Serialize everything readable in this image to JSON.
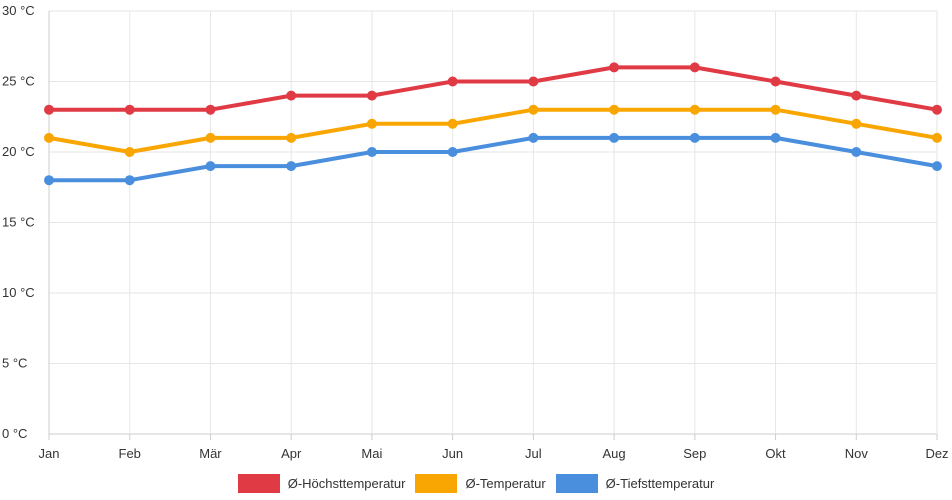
{
  "chart_data": {
    "type": "line",
    "categories": [
      "Jan",
      "Feb",
      "Mär",
      "Apr",
      "Mai",
      "Jun",
      "Jul",
      "Aug",
      "Sep",
      "Okt",
      "Nov",
      "Dez"
    ],
    "ylim": [
      0,
      30
    ],
    "yticks": [
      0,
      5,
      10,
      15,
      20,
      25,
      30
    ],
    "yunit": " °C",
    "grid": true,
    "legend_position": "bottom",
    "series": [
      {
        "name": "Ø-Höchsttemperatur",
        "color": "#e03a45",
        "values": [
          23,
          23,
          23,
          24,
          24,
          25,
          25,
          26,
          26,
          25,
          24,
          23
        ]
      },
      {
        "name": "Ø-Temperatur",
        "color": "#f9a602",
        "values": [
          21,
          20,
          21,
          21,
          22,
          22,
          23,
          23,
          23,
          23,
          22,
          21
        ]
      },
      {
        "name": "Ø-Tiefsttemperatur",
        "color": "#4a8ede",
        "values": [
          18,
          18,
          19,
          19,
          20,
          20,
          21,
          21,
          21,
          21,
          20,
          19
        ]
      }
    ]
  }
}
